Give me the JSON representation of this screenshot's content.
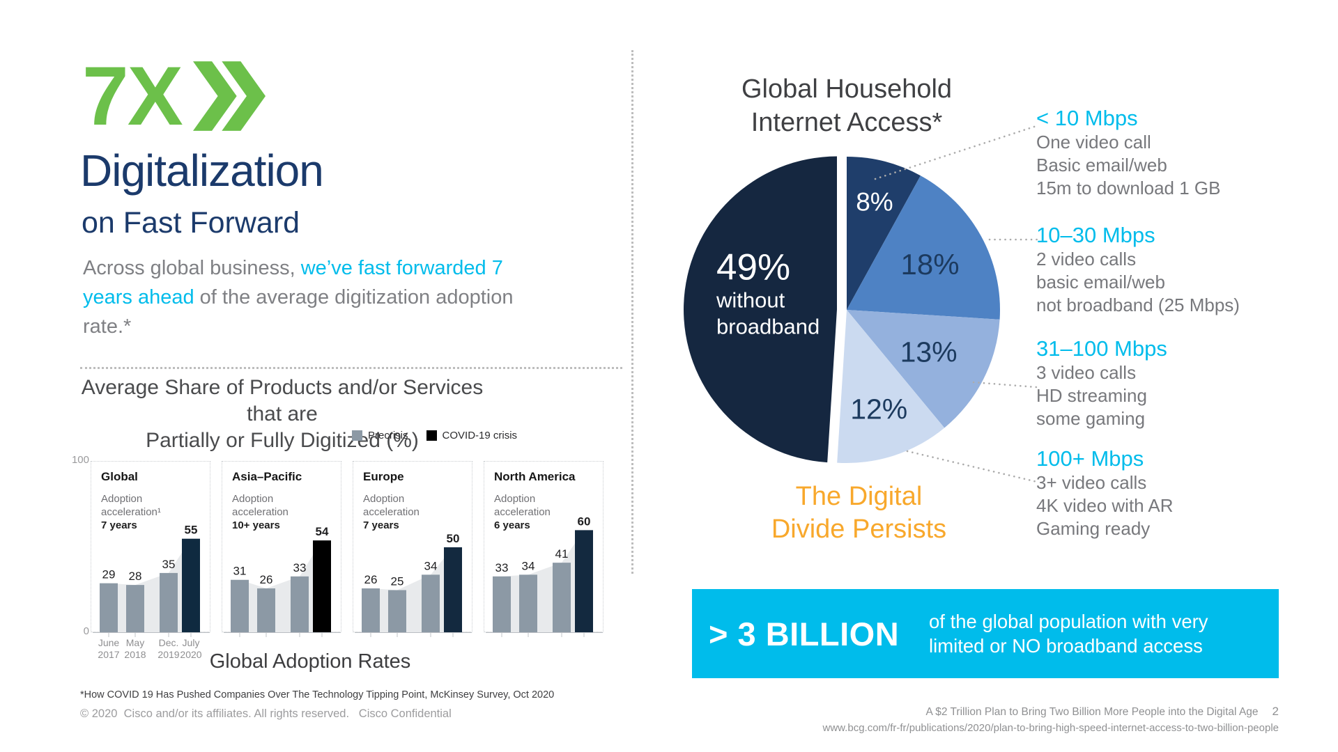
{
  "slide": {
    "logo": "7X",
    "title": "Digitalization",
    "subtitle": "on Fast Forward",
    "intro_pre": "Across global business, ",
    "intro_highlight": "we’ve fast forwarded 7 years ahead",
    "intro_post": " of the average digitization adoption rate.*"
  },
  "digitization_chart": {
    "title_line1": "Average Share of Products and/or Services that are",
    "title_line2": "Partially or Fully Digitized (%)",
    "legend": [
      {
        "label": "Precrisis",
        "color": "#8C99A5"
      },
      {
        "label": "COVID-19 crisis",
        "color": "#000000"
      }
    ],
    "y_axis_top": "100",
    "y_axis_bottom": "0",
    "caption": "Global Adoption Rates",
    "footnote": "*How COVID 19 Has Pushed Companies Over The Technology Tipping Point, McKinsey Survey, Oct 2020"
  },
  "internet_access": {
    "title_line1": "Global Household",
    "title_line2": "Internet Access*",
    "tagline_line1": "The Digital",
    "tagline_line2": "Divide Persists",
    "speed_tiers": [
      {
        "heading": "< 10 Mbps",
        "lines": [
          "One video call",
          "Basic email/web",
          "15m to download 1 GB"
        ]
      },
      {
        "heading": "10–30 Mbps",
        "lines": [
          "2 video calls",
          "basic email/web",
          "not broadband (25 Mbps)"
        ]
      },
      {
        "heading": "31–100 Mbps",
        "lines": [
          "3 video calls",
          "HD streaming",
          "some gaming"
        ]
      },
      {
        "heading": "100+ Mbps",
        "lines": [
          "3+ video calls",
          "4K video with AR",
          "Gaming ready"
        ]
      }
    ],
    "banner": {
      "stat": "> 3 BILLION",
      "text_line1": "of the global population with very",
      "text_line2": "limited or NO broadband access"
    }
  },
  "footer": {
    "copyright": "© 2020  Cisco and/or its affiliates. All rights reserved.   Cisco Confidential",
    "source_line1": "A $2 Trillion Plan to Bring Two Billion More People into the Digital Age",
    "source_line2": "www.bcg.com/fr-fr/publications/2020/plan-to-bring-high-speed-internet-access-to-two-billion-people",
    "page_number": "2"
  },
  "chart_data": [
    {
      "type": "bar",
      "region": "Global",
      "note_lines": [
        "Adoption",
        "acceleration¹"
      ],
      "years_label": "7 years",
      "categories": [
        "June 2017",
        "May 2018",
        "Dec. 2019",
        "July 2020"
      ],
      "values": [
        29,
        28,
        35,
        55
      ],
      "bar_colors": [
        "#8C99A5",
        "#8C99A5",
        "#8C99A5",
        "#0F2A40"
      ],
      "ylim": [
        0,
        100
      ],
      "show_x_labels": true
    },
    {
      "type": "bar",
      "region": "Asia–Pacific",
      "note_lines": [
        "Adoption",
        "acceleration"
      ],
      "years_label": "10+ years",
      "categories": [
        "June 2017",
        "May 2018",
        "Dec. 2019",
        "July 2020"
      ],
      "values": [
        31,
        26,
        33,
        54
      ],
      "bar_colors": [
        "#8C99A5",
        "#8C99A5",
        "#8C99A5",
        "#000000"
      ],
      "ylim": [
        0,
        100
      ],
      "show_x_labels": false
    },
    {
      "type": "bar",
      "region": "Europe",
      "note_lines": [
        "Adoption",
        "acceleration"
      ],
      "years_label": "7 years",
      "categories": [
        "June 2017",
        "May 2018",
        "Dec. 2019",
        "July 2020"
      ],
      "values": [
        26,
        25,
        34,
        50
      ],
      "bar_colors": [
        "#8C99A5",
        "#8C99A5",
        "#8C99A5",
        "#13293F"
      ],
      "ylim": [
        0,
        100
      ],
      "show_x_labels": false
    },
    {
      "type": "bar",
      "region": "North America",
      "note_lines": [
        "Adoption",
        "acceleration"
      ],
      "years_label": "6 years",
      "categories": [
        "June 2017",
        "May 2018",
        "Dec. 2019",
        "July 2020"
      ],
      "values": [
        33,
        34,
        41,
        60
      ],
      "bar_colors": [
        "#8C99A5",
        "#8C99A5",
        "#8C99A5",
        "#13293F"
      ],
      "ylim": [
        0,
        100
      ],
      "show_x_labels": false
    },
    {
      "type": "pie",
      "title": "Global Household Internet Access*",
      "slices": [
        {
          "label": "8%",
          "value": 8,
          "color": "#1F3E6B",
          "text_color": "#FFFFFF"
        },
        {
          "label": "18%",
          "value": 18,
          "color": "#4E82C4",
          "text_color": "#1C3A5E"
        },
        {
          "label": "13%",
          "value": 13,
          "color": "#94B1DD",
          "text_color": "#1C3A5E"
        },
        {
          "label": "12%",
          "value": 12,
          "color": "#CBDAF0",
          "text_color": "#1C3A5E"
        },
        {
          "label": "49%",
          "value": 49,
          "sub_lines": [
            "without",
            "broadband"
          ],
          "color": "#152740",
          "text_color": "#FFFFFF",
          "exploded": true
        }
      ],
      "start_angle_deg": 0,
      "clockwise": true
    }
  ],
  "colors": {
    "green": "#6CC04A",
    "navy": "#1B3A6B",
    "cyan": "#00BCEB",
    "orange": "#F8A82C",
    "precrisis_gray": "#8C99A5",
    "area_fill": "#E8EAEC"
  }
}
